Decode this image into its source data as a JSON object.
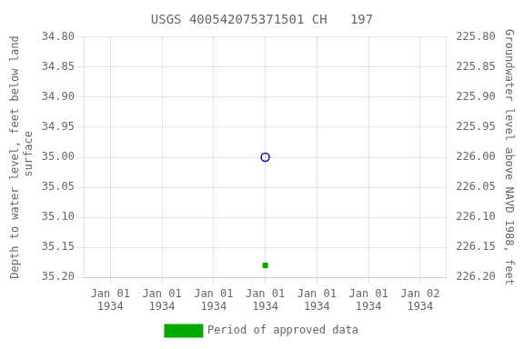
{
  "chart_data": {
    "type": "scatter",
    "title": "USGS 400542075371501 CH   197",
    "y_label": "Depth to water level, feet below land\n surface",
    "y2_label": "Groundwater level above NAVD 1988, feet",
    "categories": [
      "Jan 01\n1934",
      "Jan 01\n1934",
      "Jan 01\n1934",
      "Jan 01\n1934",
      "Jan 01\n1934",
      "Jan 01\n1934",
      "Jan 02\n1934"
    ],
    "series": [
      {
        "color": "#0000cc",
        "marker": "open_circle",
        "values": [
          null,
          null,
          null,
          35.0,
          null,
          null,
          null
        ]
      },
      {
        "name": "Period of approved data",
        "color": "#00aa00",
        "marker": "square",
        "values": [
          null,
          null,
          null,
          35.18,
          null,
          null,
          null
        ]
      }
    ],
    "ylim": [
      35.2,
      34.8
    ],
    "yticks": [
      {
        "value": 34.8,
        "label": "34.80"
      },
      {
        "value": 34.85,
        "label": "34.85"
      },
      {
        "value": 34.9,
        "label": "34.90"
      },
      {
        "value": 34.95,
        "label": "34.95"
      },
      {
        "value": 35.0,
        "label": "35.00"
      },
      {
        "value": 35.05,
        "label": "35.05"
      },
      {
        "value": 35.1,
        "label": "35.10"
      },
      {
        "value": 35.15,
        "label": "35.15"
      },
      {
        "value": 35.2,
        "label": "35.20"
      }
    ],
    "y2lim": [
      226.2,
      225.8
    ],
    "y2ticks": [
      {
        "value": 226.2,
        "label": "226.20"
      },
      {
        "value": 226.15,
        "label": "226.15"
      },
      {
        "value": 226.1,
        "label": "226.10"
      },
      {
        "value": 226.05,
        "label": "226.05"
      },
      {
        "value": 226.0,
        "label": "226.00"
      },
      {
        "value": 225.95,
        "label": "225.95"
      },
      {
        "value": 225.9,
        "label": "225.90"
      },
      {
        "value": 225.85,
        "label": "225.85"
      },
      {
        "value": 225.8,
        "label": "225.80"
      }
    ],
    "grid": true,
    "legend": "bottom"
  }
}
